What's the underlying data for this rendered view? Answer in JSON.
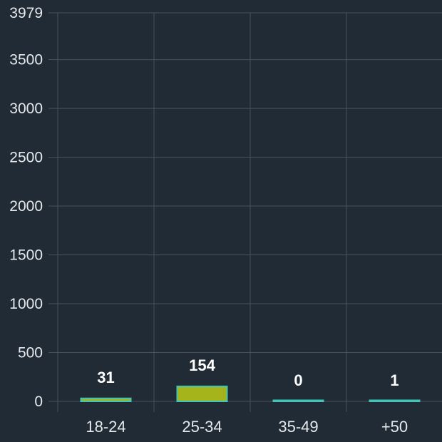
{
  "chart_data": {
    "type": "bar",
    "categories": [
      "18-24",
      "25-34",
      "35-49",
      "+50"
    ],
    "values": [
      31,
      154,
      0,
      1
    ],
    "data_labels": [
      "31",
      "154",
      "0",
      "1"
    ],
    "y_ticks": [
      0,
      500,
      1000,
      1500,
      2000,
      2500,
      3000,
      3500,
      3979
    ],
    "y_tick_labels": [
      "0",
      "500",
      "1000",
      "1500",
      "2000",
      "2500",
      "3000",
      "3500",
      "3979"
    ],
    "ylim": [
      0,
      3979
    ],
    "grid": true,
    "legend": "none"
  },
  "colors": {
    "background": "#202b36",
    "grid": "#46525e",
    "bar_fill": "#a4b41a",
    "bar_stroke": "#44c4b4",
    "text": "#e6e9ec",
    "data_label": "#ffffff"
  }
}
